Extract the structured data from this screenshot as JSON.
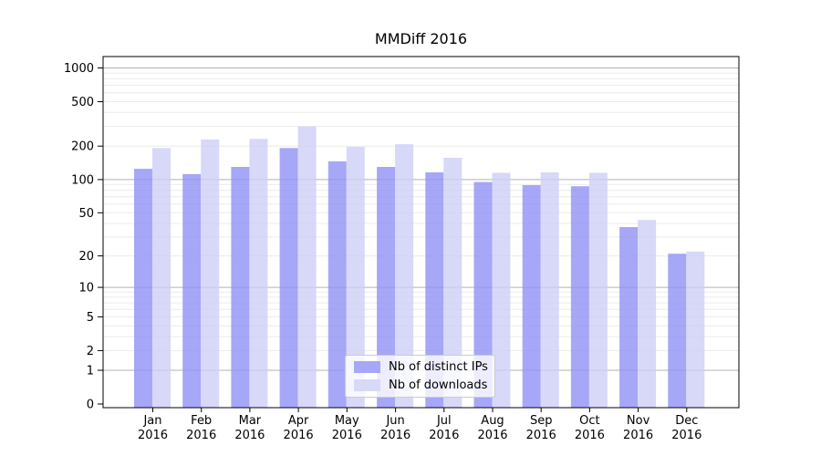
{
  "chart_data": {
    "type": "bar",
    "title": "MMDiff 2016",
    "x_categories_months": [
      "Jan",
      "Feb",
      "Mar",
      "Apr",
      "May",
      "Jun",
      "Jul",
      "Aug",
      "Sep",
      "Oct",
      "Nov",
      "Dec"
    ],
    "x_year_label": "2016",
    "series": [
      {
        "name": "Nb of distinct IPs",
        "bar_rgba": "rgba(145,145,246,0.8)",
        "legend_color": "#a7a7f8",
        "values": [
          125,
          112,
          130,
          192,
          146,
          130,
          116,
          95,
          89,
          87,
          37,
          21
        ]
      },
      {
        "name": "Nb of downloads",
        "bar_rgba": "rgba(206,206,247,0.8)",
        "legend_color": "#d8d8f8",
        "values": [
          192,
          229,
          232,
          300,
          197,
          208,
          157,
          115,
          116,
          115,
          43,
          22
        ]
      }
    ],
    "y_axis": {
      "scale": "log10(value+1)",
      "tick_values": [
        1000,
        500,
        200,
        100,
        50,
        20,
        10,
        5,
        2,
        1,
        0
      ],
      "tick_labels": [
        "1000",
        "500",
        "200",
        "100",
        "50",
        "20",
        "10",
        "5",
        "2",
        "1",
        "0"
      ]
    },
    "grid": {
      "major_values": [
        1,
        10,
        100,
        1000
      ],
      "minor_values": [
        2,
        3,
        4,
        5,
        6,
        7,
        8,
        9,
        20,
        30,
        40,
        50,
        60,
        70,
        80,
        90,
        200,
        300,
        400,
        500,
        600,
        700,
        800,
        900
      ],
      "major_color": "#b3b3b3",
      "minor_color": "#ececec"
    },
    "legend_position": "lower center",
    "colors": {
      "spine": "#000000",
      "tick_text": "#000000",
      "background": "#ffffff"
    }
  }
}
